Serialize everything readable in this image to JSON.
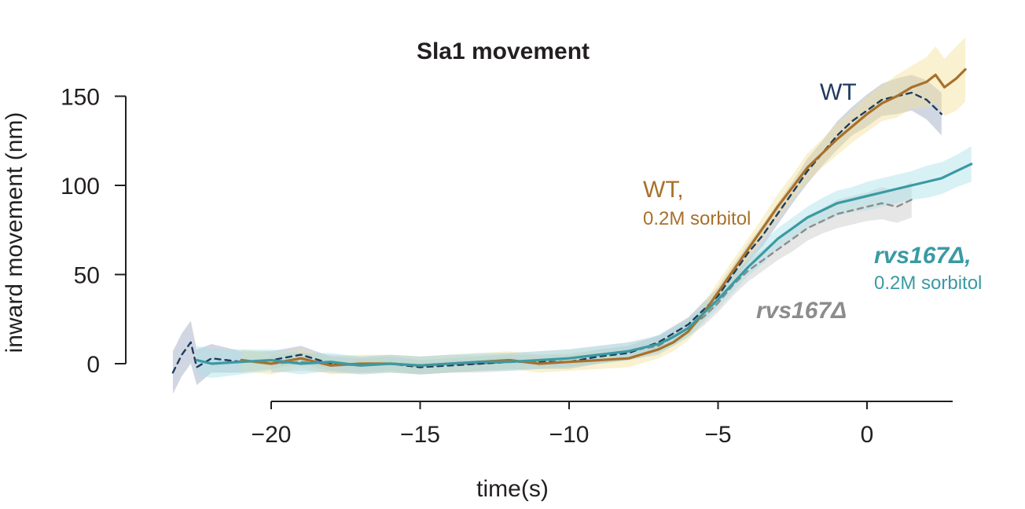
{
  "chart_data": {
    "type": "line",
    "title": "Sla1 movement",
    "xlabel": "time(s)",
    "ylabel": "inward movement (nm)",
    "xlim": [
      -23.5,
      3.5
    ],
    "ylim": [
      -18,
      160
    ],
    "xticks": [
      -20,
      -15,
      -10,
      -5,
      0
    ],
    "xtick_labels": [
      "−20",
      "−15",
      "−10",
      "−5",
      "0"
    ],
    "yticks": [
      0,
      50,
      100,
      150
    ],
    "ytick_labels": [
      "0",
      "50",
      "100",
      "150"
    ],
    "grid": false,
    "legend": "inline labels next to curves",
    "colors": {
      "wt": "#1f3b5e",
      "wt_sorbitol": "#a8712a",
      "rvs": "#8c8c8c",
      "rvs_sorbitol": "#3a9aa3",
      "band_wt": "#9aa7bf",
      "band_wt_sorbitol": "#f1df96",
      "band_rvs": "#c7c7c7",
      "band_rvs_sorbitol": "#a9dfe6",
      "axis": "#231f20"
    },
    "series": [
      {
        "name": "WT",
        "style": "dashed",
        "x": [
          -23.3,
          -23,
          -22.7,
          -22.5,
          -22,
          -21,
          -20,
          -19,
          -18,
          -17,
          -16,
          -15,
          -14,
          -13,
          -12,
          -11,
          -10,
          -9,
          -8,
          -7,
          -6,
          -5,
          -4.5,
          -4,
          -3.5,
          -3,
          -2.5,
          -2,
          -1.5,
          -1,
          -0.5,
          0,
          0.5,
          1,
          1.5,
          2,
          2.5
        ],
        "y": [
          -5,
          5,
          12,
          -2,
          3,
          1,
          2,
          5,
          0,
          -1,
          0,
          -2,
          -1,
          0,
          1,
          1,
          1,
          4,
          6,
          12,
          22,
          38,
          50,
          62,
          72,
          84,
          96,
          108,
          118,
          128,
          136,
          142,
          148,
          150,
          152,
          148,
          140
        ],
        "band": [
          12,
          12,
          12,
          10,
          8,
          6,
          5,
          5,
          4,
          4,
          4,
          4,
          4,
          4,
          4,
          4,
          4,
          4,
          4,
          4,
          4,
          5,
          5,
          5,
          6,
          6,
          6,
          7,
          7,
          8,
          8,
          9,
          9,
          10,
          10,
          11,
          12
        ]
      },
      {
        "name": "WT,",
        "name_line2": "0.2M sorbitol",
        "style": "solid",
        "x": [
          -21,
          -20,
          -19,
          -18,
          -17,
          -16,
          -15,
          -14,
          -13,
          -12,
          -11,
          -10,
          -9,
          -8,
          -7,
          -6.5,
          -6,
          -5.5,
          -5,
          -4.5,
          -4,
          -3.5,
          -3,
          -2.5,
          -2,
          -1.5,
          -1,
          -0.5,
          0,
          0.5,
          1,
          1.5,
          2,
          2.3,
          2.6,
          3,
          3.3
        ],
        "y": [
          2,
          0,
          3,
          -1,
          0,
          0,
          -1,
          0,
          1,
          2,
          0,
          1,
          2,
          3,
          8,
          12,
          18,
          28,
          40,
          52,
          64,
          76,
          88,
          99,
          110,
          118,
          126,
          133,
          140,
          146,
          150,
          155,
          158,
          162,
          155,
          160,
          165
        ],
        "band": [
          6,
          6,
          5,
          5,
          5,
          5,
          5,
          5,
          5,
          5,
          5,
          5,
          5,
          5,
          5,
          5,
          5,
          5,
          6,
          6,
          6,
          6,
          7,
          7,
          8,
          8,
          9,
          9,
          10,
          10,
          12,
          12,
          14,
          16,
          16,
          18,
          18
        ]
      },
      {
        "name": "rvs167Δ",
        "style": "dashed",
        "x": [
          -20,
          -19,
          -18,
          -17,
          -16,
          -15,
          -14,
          -13,
          -12,
          -11,
          -10,
          -9,
          -8,
          -7,
          -6,
          -5.5,
          -5,
          -4.5,
          -4,
          -3.5,
          -3,
          -2.5,
          -2,
          -1.5,
          -1,
          -0.5,
          0,
          0.5,
          1,
          1.5
        ],
        "y": [
          0,
          1,
          0,
          -1,
          0,
          -1,
          0,
          0,
          1,
          2,
          3,
          5,
          7,
          10,
          20,
          26,
          34,
          44,
          52,
          58,
          64,
          70,
          76,
          80,
          84,
          86,
          88,
          90,
          88,
          92
        ],
        "band": [
          5,
          5,
          5,
          5,
          5,
          5,
          5,
          5,
          5,
          5,
          5,
          5,
          5,
          5,
          5,
          5,
          5,
          6,
          6,
          6,
          6,
          7,
          7,
          7,
          8,
          8,
          8,
          9,
          9,
          10
        ]
      },
      {
        "name": "rvs167Δ,",
        "name_line2": "0.2M sorbitol",
        "style": "solid",
        "x": [
          -22.5,
          -22,
          -21,
          -20,
          -19,
          -18,
          -17,
          -16,
          -15,
          -14,
          -13,
          -12,
          -11,
          -10,
          -9,
          -8,
          -7,
          -6.5,
          -6,
          -5.5,
          -5,
          -4.5,
          -4,
          -3.5,
          -3,
          -2.5,
          -2,
          -1.5,
          -1,
          -0.5,
          0,
          0.5,
          1,
          1.5,
          2,
          2.5,
          3,
          3.5
        ],
        "y": [
          2,
          0,
          1,
          2,
          0,
          1,
          -1,
          0,
          -1,
          0,
          1,
          1,
          2,
          3,
          5,
          7,
          11,
          15,
          20,
          28,
          36,
          45,
          54,
          62,
          70,
          76,
          82,
          86,
          90,
          92,
          94,
          96,
          98,
          100,
          102,
          104,
          108,
          112
        ],
        "band": [
          8,
          8,
          7,
          6,
          6,
          5,
          5,
          5,
          5,
          5,
          5,
          5,
          5,
          5,
          5,
          5,
          5,
          5,
          5,
          5,
          5,
          5,
          5,
          6,
          6,
          6,
          6,
          7,
          7,
          7,
          8,
          8,
          8,
          8,
          9,
          9,
          9,
          10
        ]
      }
    ]
  }
}
